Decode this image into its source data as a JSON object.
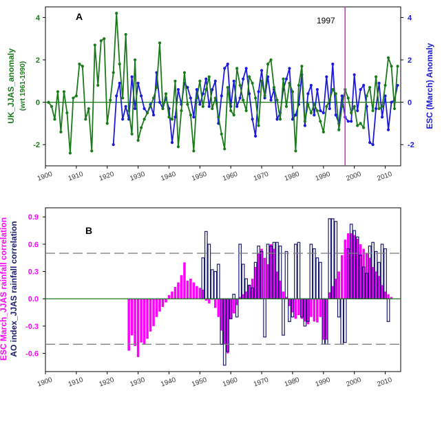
{
  "colors": {
    "uk_line": "#1a7a1a",
    "esc_line": "#1a1adb",
    "marker_line": "#cc33cc",
    "esc_corr_bar": "#ff00ff",
    "ao_corr_bar": "#1a1a6e",
    "threshold": "#808080"
  },
  "chart_data": [
    {
      "type": "line",
      "panel": "A",
      "marker_label": "1997",
      "ylabel_left": "UK_JJAS_anomaly",
      "ylabel_left_sub": "(wrt 1961-1990)",
      "ylabel_right": "ESC (March) Anomaly",
      "xlim": [
        1900,
        2015
      ],
      "ylim": [
        -3,
        4.5
      ],
      "x_ticks": [
        "1900",
        "1910",
        "1920",
        "1930",
        "1940",
        "1950",
        "1960",
        "1970",
        "1980",
        "1990",
        "2000",
        "2010"
      ],
      "y_ticks_left": [
        "4",
        "2",
        "0",
        "-2"
      ],
      "y_ticks_right": [
        "4",
        "2",
        "0",
        "-2"
      ],
      "series": [
        {
          "key": "uk",
          "start_year": 1901,
          "values": [
            0,
            -0.2,
            -0.8,
            0.5,
            -1.4,
            0.5,
            -0.5,
            -2.4,
            0.2,
            0.3,
            1.8,
            1.7,
            -0.8,
            -0.3,
            -2.3,
            2.7,
            0.8,
            2.9,
            3.0,
            -1.0,
            0.1,
            1.4,
            4.2,
            1.8,
            0.2,
            3.2,
            -0.4,
            -1.5,
            2.0,
            -1.8,
            -1.2,
            -0.8,
            -0.5,
            -0.2,
            0.2,
            0.7,
            2.8,
            -0.3,
            0.4,
            -0.7,
            -0.8,
            1.0,
            -2.1,
            -0.4,
            1.4,
            -0.1,
            -0.6,
            -2.3,
            0.2,
            1.0,
            -0.2,
            0.6,
            1.2,
            -0.3,
            0.2,
            -0.7,
            -1.5,
            -2.2,
            0.7,
            -0.4,
            -0.6,
            1.6,
            0.8,
            0.1,
            -0.4,
            1.2,
            0.9,
            0.2,
            -1.1,
            1.0,
            0.3,
            1.8,
            2.0,
            0.7,
            0.1,
            -0.8,
            1.1,
            -0.2,
            0.9,
            0.5,
            -2.3,
            0.8,
            1.7,
            -0.9,
            -0.1,
            -0.5,
            -0.1,
            -0.4,
            -0.9,
            -1.4,
            -0.2,
            0.1,
            0.6,
            0.4,
            -1.3,
            -0.2,
            0.6,
            0.2,
            -0.5,
            -0.2,
            -1.1,
            -1.0,
            -1.2,
            0.3,
            0.7,
            -0.4,
            1.2,
            -0.3,
            -0.2,
            0.8,
            2.1,
            1.7,
            -0.3,
            1.7
          ]
        },
        {
          "key": "esc",
          "start_year": 1922,
          "values": [
            -2.0,
            0.3,
            0.9,
            -0.8,
            -0.2,
            -0.8,
            1.2,
            -0.3,
            0.9,
            0.3,
            -0.3,
            -0.5,
            -0.1,
            -0.6,
            1.4,
            0.0,
            -0.3,
            0.2,
            -0.3,
            -1.9,
            -0.7,
            0.6,
            -0.1,
            0.9,
            0.7,
            0.2,
            -0.7,
            0.6,
            -0.1,
            0.4,
            1.1,
            -0.2,
            0.6,
            1.0,
            -1.0,
            0.3,
            1.6,
            1.8,
            -0.2,
            1.0,
            -0.2,
            0.2,
            1.1,
            1.6,
            0.4,
            -0.8,
            -1.6,
            0.5,
            1.5,
            0.2,
            1.2,
            0.1,
            0.6,
            -0.8,
            -0.5,
            0.6,
            1.1,
            1.6,
            -0.8,
            -0.6,
            -0.1,
            1.3,
            -1.1,
            0.4,
            0.8,
            -0.6,
            0.6,
            -0.4,
            -0.5,
            1.2,
            -0.3,
            1.8,
            -0.6,
            -1.0,
            0.3,
            -0.7,
            -0.9,
            -0.9,
            1.3,
            -0.4,
            0.6,
            0.8,
            -0.2,
            -1.9,
            -2.0,
            -0.3,
            0.9,
            -0.7,
            0.3,
            -1.3,
            0.0,
            0.1,
            0.8
          ]
        }
      ]
    },
    {
      "type": "bar",
      "panel": "B",
      "ylabel_outer": "ESC March_JJAS rainfall correlation",
      "ylabel_inner": "AO index_JJAS rainfall correlation",
      "xlim": [
        1900,
        2015
      ],
      "ylim": [
        -0.8,
        1.0
      ],
      "threshold": 0.5,
      "x_ticks": [
        "1900",
        "1910",
        "1920",
        "1930",
        "1940",
        "1950",
        "1960",
        "1970",
        "1980",
        "1990",
        "2000",
        "2010"
      ],
      "y_ticks": [
        "0.9",
        "0.6",
        "0.3",
        "0.0",
        "-0.3",
        "-0.6"
      ],
      "series": [
        {
          "key": "esc_corr",
          "start_year": 1927,
          "values": [
            -0.57,
            -0.4,
            -0.52,
            -0.64,
            -0.48,
            -0.5,
            -0.44,
            -0.36,
            -0.3,
            -0.2,
            -0.14,
            -0.09,
            -0.04,
            0.04,
            0.08,
            0.13,
            0.18,
            0.26,
            0.4,
            0.2,
            0.22,
            0.18,
            0.14,
            0.12,
            0.1,
            -0.02,
            -0.05,
            -0.01,
            -0.1,
            -0.2,
            -0.35,
            -0.5,
            -0.6,
            -0.22,
            -0.16,
            -0.07,
            0.02,
            0.05,
            0.08,
            0.15,
            0.22,
            0.35,
            0.5,
            0.55,
            0.45,
            0.38,
            0.6,
            0.55,
            0.3,
            0.2,
            0.08,
            0.02,
            -0.08,
            -0.15,
            -0.22,
            -0.18,
            -0.22,
            -0.25,
            -0.28,
            -0.2,
            -0.25,
            -0.26,
            -0.2,
            -0.45,
            -0.45,
            0.07,
            0.14,
            0.22,
            0.3,
            0.48,
            0.65,
            0.72,
            0.72,
            0.7,
            0.66,
            0.6,
            0.55,
            0.5,
            0.45,
            0.35,
            0.3,
            0.25,
            0.15,
            0.08,
            0.05,
            0.02
          ]
        },
        {
          "key": "ao_corr",
          "start_year": 1951,
          "values": [
            0.45,
            0.74,
            0.6,
            0.32,
            0.3,
            0.38,
            -0.5,
            -0.73,
            -0.58,
            -0.22,
            0.05,
            -0.2,
            0.6,
            0.38,
            0.22,
            0.15,
            0.12,
            0.4,
            0.58,
            0.52,
            -0.42,
            0.6,
            0.58,
            0.62,
            0.62,
            0.58,
            -0.4,
            0.52,
            -0.25,
            -0.2,
            0.6,
            0.62,
            -0.2,
            -0.3,
            -0.25,
            0.6,
            0.55,
            0.45,
            0.4,
            -0.5,
            -0.5,
            0.88,
            0.88,
            0.85,
            -0.2,
            -0.5,
            -0.48,
            0.55,
            0.82,
            0.75,
            0.68,
            0.48,
            0.35,
            0.28,
            0.58,
            0.62,
            0.52,
            0.4,
            0.6,
            0.55,
            -0.25
          ]
        }
      ]
    }
  ]
}
